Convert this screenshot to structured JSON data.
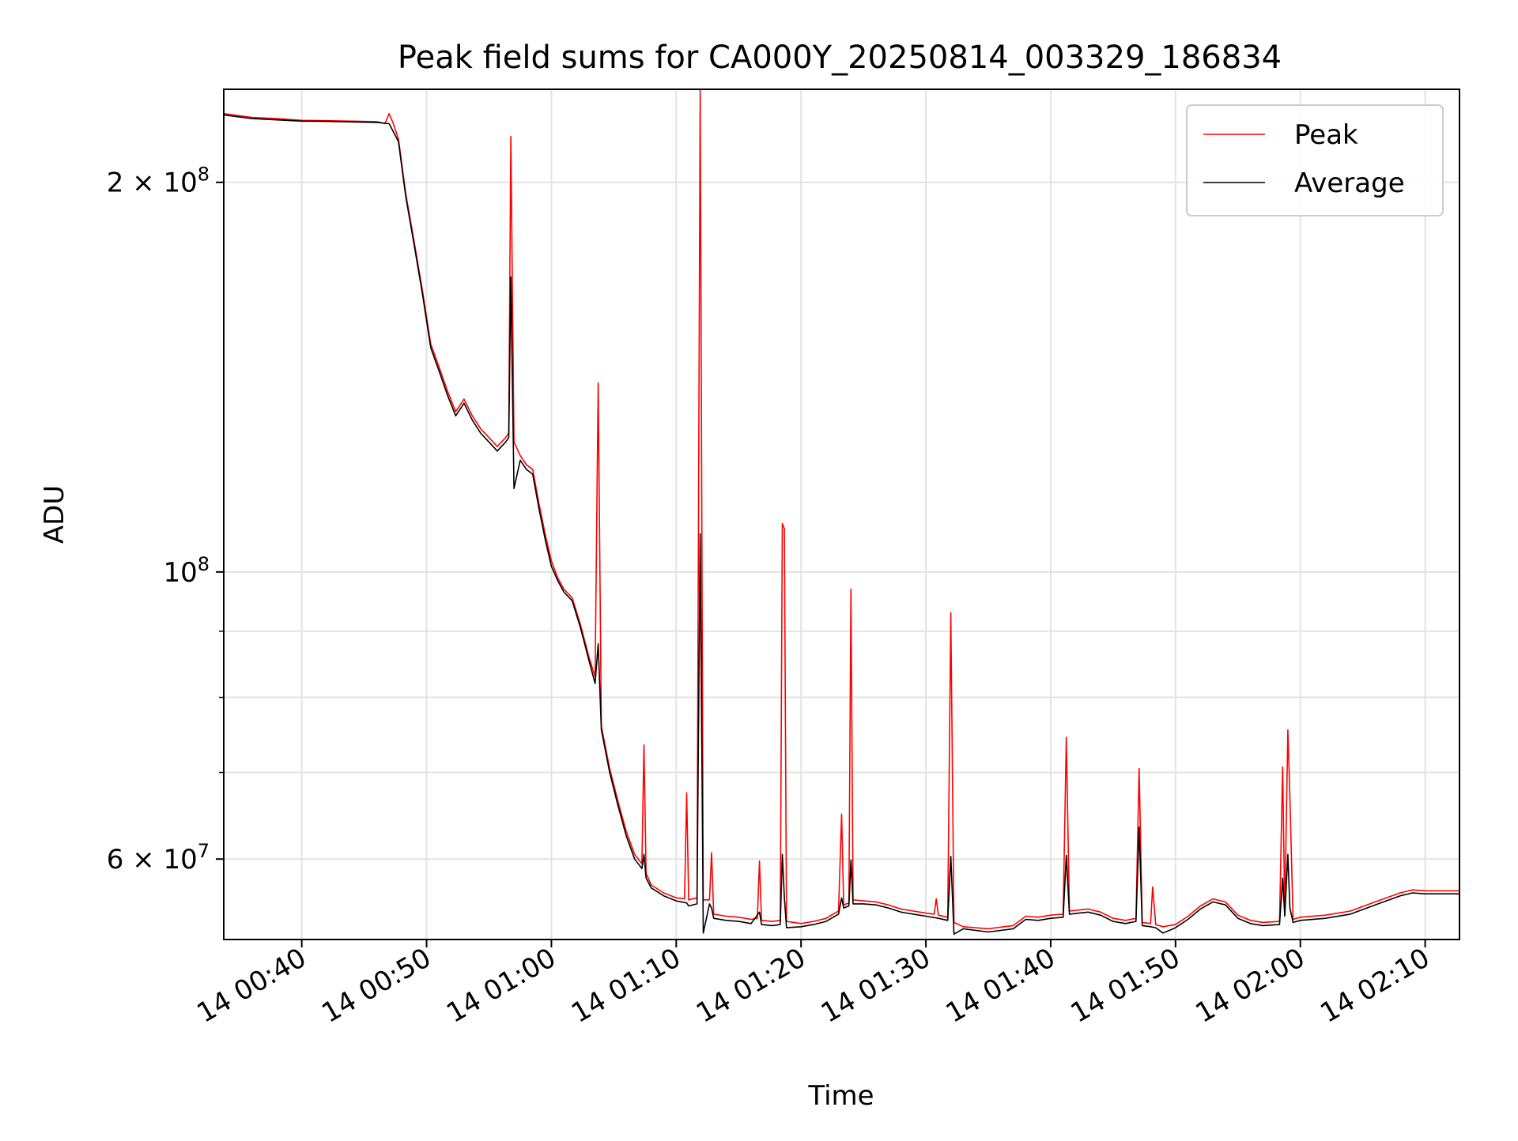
{
  "chart_data": {
    "type": "line",
    "title": "Peak field sums for CA000Y_20250814_003329_186834",
    "xlabel": "Time",
    "ylabel": "ADU",
    "yscale": "log",
    "xlim": [
      "2025-08-14 00:33:45",
      "2025-08-14 02:12:45"
    ],
    "ylim": [
      52000000,
      236000000
    ],
    "grid": true,
    "legend_position": "top-right",
    "x_ticks": [
      "14 00:40",
      "14 00:50",
      "14 01:00",
      "14 01:10",
      "14 01:20",
      "14 01:30",
      "14 01:40",
      "14 01:50",
      "14 02:00",
      "14 02:10"
    ],
    "y_ticks_major": [
      {
        "value": 200000000,
        "mantissa": "2",
        "exponent": "8"
      },
      {
        "value": 100000000,
        "mantissa": "",
        "exponent": "8"
      },
      {
        "value": 60000000,
        "mantissa": "6",
        "exponent": "7"
      }
    ],
    "y_ticks_minor": [
      70000000,
      80000000,
      90000000
    ],
    "series": [
      {
        "name": "Peak",
        "color": "#ff0000",
        "points": [
          [
            "00:33:45",
            226000000
          ],
          [
            "00:36:00",
            224500000
          ],
          [
            "00:38:00",
            224000000
          ],
          [
            "00:40:00",
            223300000
          ],
          [
            "00:42:00",
            223200000
          ],
          [
            "00:44:00",
            223000000
          ],
          [
            "00:46:00",
            222800000
          ],
          [
            "00:46:40",
            222000000
          ],
          [
            "00:47:00",
            226000000
          ],
          [
            "00:47:20",
            222000000
          ],
          [
            "00:47:45",
            216000000
          ],
          [
            "00:48:20",
            196000000
          ],
          [
            "00:49:00",
            180000000
          ],
          [
            "00:49:40",
            165000000
          ],
          [
            "00:50:20",
            150000000
          ],
          [
            "00:51:00",
            144000000
          ],
          [
            "00:51:40",
            138000000
          ],
          [
            "00:52:20",
            133000000
          ],
          [
            "00:53:00",
            136000000
          ],
          [
            "00:53:40",
            132000000
          ],
          [
            "00:54:20",
            129000000
          ],
          [
            "00:55:00",
            127000000
          ],
          [
            "00:55:40",
            125000000
          ],
          [
            "00:56:20",
            127000000
          ],
          [
            "00:56:35",
            128000000
          ],
          [
            "00:56:45",
            217000000
          ],
          [
            "00:57:00",
            126000000
          ],
          [
            "00:57:30",
            123000000
          ],
          [
            "00:58:00",
            121000000
          ],
          [
            "00:58:30",
            120000000
          ],
          [
            "00:59:00",
            113000000
          ],
          [
            "00:59:30",
            107000000
          ],
          [
            "01:00:00",
            102000000
          ],
          [
            "01:00:30",
            99000000
          ],
          [
            "01:01:00",
            97000000
          ],
          [
            "01:01:40",
            95500000
          ],
          [
            "01:02:20",
            91000000
          ],
          [
            "01:03:00",
            86000000
          ],
          [
            "01:03:30",
            83000000
          ],
          [
            "01:03:45",
            140000000
          ],
          [
            "01:04:00",
            76000000
          ],
          [
            "01:04:40",
            70500000
          ],
          [
            "01:05:20",
            66500000
          ],
          [
            "01:06:00",
            63000000
          ],
          [
            "01:06:40",
            60500000
          ],
          [
            "01:07:15",
            59500000
          ],
          [
            "01:07:25",
            73500000
          ],
          [
            "01:07:35",
            58500000
          ],
          [
            "01:08:00",
            57300000
          ],
          [
            "01:09:00",
            56500000
          ],
          [
            "01:10:00",
            56000000
          ],
          [
            "01:10:40",
            55900000
          ],
          [
            "01:10:50",
            67500000
          ],
          [
            "01:11:00",
            55800000
          ],
          [
            "01:11:40",
            56000000
          ],
          [
            "01:11:55",
            236000000
          ],
          [
            "01:12:10",
            55800000
          ],
          [
            "01:12:40",
            55800000
          ],
          [
            "01:12:50",
            60700000
          ],
          [
            "01:13:00",
            54400000
          ],
          [
            "01:14:00",
            54200000
          ],
          [
            "01:15:00",
            54100000
          ],
          [
            "01:16:00",
            53900000
          ],
          [
            "01:16:30",
            54000000
          ],
          [
            "01:16:40",
            59800000
          ],
          [
            "01:16:50",
            53800000
          ],
          [
            "01:17:40",
            53700000
          ],
          [
            "01:18:20",
            53800000
          ],
          [
            "01:18:30",
            109000000
          ],
          [
            "01:18:40",
            108000000
          ],
          [
            "01:18:50",
            53700000
          ],
          [
            "01:20:00",
            53500000
          ],
          [
            "01:21:00",
            53700000
          ],
          [
            "01:22:00",
            54000000
          ],
          [
            "01:23:00",
            54700000
          ],
          [
            "01:23:15",
            65000000
          ],
          [
            "01:23:25",
            55300000
          ],
          [
            "01:23:50",
            55500000
          ],
          [
            "01:24:00",
            97000000
          ],
          [
            "01:24:10",
            55800000
          ],
          [
            "01:25:00",
            55700000
          ],
          [
            "01:26:00",
            55600000
          ],
          [
            "01:27:00",
            55300000
          ],
          [
            "01:28:00",
            54900000
          ],
          [
            "01:29:00",
            54700000
          ],
          [
            "01:30:00",
            54500000
          ],
          [
            "01:30:40",
            54400000
          ],
          [
            "01:30:50",
            55900000
          ],
          [
            "01:31:00",
            54300000
          ],
          [
            "01:31:45",
            54100000
          ],
          [
            "01:32:00",
            93000000
          ],
          [
            "01:32:15",
            53600000
          ],
          [
            "01:33:00",
            53200000
          ],
          [
            "01:35:00",
            53000000
          ],
          [
            "01:37:00",
            53300000
          ],
          [
            "01:38:00",
            54200000
          ],
          [
            "01:39:00",
            54100000
          ],
          [
            "01:40:00",
            54300000
          ],
          [
            "01:41:00",
            54400000
          ],
          [
            "01:41:15",
            74500000
          ],
          [
            "01:41:30",
            54700000
          ],
          [
            "01:43:00",
            54900000
          ],
          [
            "01:44:00",
            54600000
          ],
          [
            "01:45:00",
            54000000
          ],
          [
            "01:46:00",
            53800000
          ],
          [
            "01:46:50",
            54000000
          ],
          [
            "01:47:05",
            70500000
          ],
          [
            "01:47:20",
            53600000
          ],
          [
            "01:48:00",
            53500000
          ],
          [
            "01:48:10",
            57100000
          ],
          [
            "01:48:25",
            53400000
          ],
          [
            "01:49:00",
            53200000
          ],
          [
            "01:50:00",
            53400000
          ],
          [
            "01:51:00",
            54200000
          ],
          [
            "01:52:00",
            55200000
          ],
          [
            "01:53:00",
            55900000
          ],
          [
            "01:54:00",
            55600000
          ],
          [
            "01:55:00",
            54300000
          ],
          [
            "01:56:00",
            53800000
          ],
          [
            "01:57:00",
            53600000
          ],
          [
            "01:58:20",
            53700000
          ],
          [
            "01:58:35",
            70700000
          ],
          [
            "01:58:45",
            54500000
          ],
          [
            "01:59:00",
            75500000
          ],
          [
            "01:59:10",
            67000000
          ],
          [
            "01:59:25",
            53900000
          ],
          [
            "02:00:00",
            54100000
          ],
          [
            "02:02:00",
            54300000
          ],
          [
            "02:04:00",
            54700000
          ],
          [
            "02:06:00",
            55600000
          ],
          [
            "02:08:00",
            56500000
          ],
          [
            "02:09:00",
            56800000
          ],
          [
            "02:10:00",
            56700000
          ],
          [
            "02:12:45",
            56700000
          ]
        ]
      },
      {
        "name": "Average",
        "color": "#000000",
        "points": [
          [
            "00:33:45",
            225500000
          ],
          [
            "00:36:00",
            224000000
          ],
          [
            "00:38:00",
            223500000
          ],
          [
            "00:40:00",
            223000000
          ],
          [
            "00:42:00",
            222900000
          ],
          [
            "00:44:00",
            222700000
          ],
          [
            "00:46:00",
            222500000
          ],
          [
            "00:47:00",
            222000000
          ],
          [
            "00:47:45",
            215000000
          ],
          [
            "00:48:20",
            195000000
          ],
          [
            "00:49:00",
            179000000
          ],
          [
            "00:49:40",
            164000000
          ],
          [
            "00:50:20",
            149000000
          ],
          [
            "00:51:00",
            143000000
          ],
          [
            "00:51:40",
            137000000
          ],
          [
            "00:52:20",
            132000000
          ],
          [
            "00:53:00",
            135000000
          ],
          [
            "00:53:40",
            131000000
          ],
          [
            "00:54:20",
            128000000
          ],
          [
            "00:55:00",
            126000000
          ],
          [
            "00:55:40",
            124000000
          ],
          [
            "00:56:20",
            126000000
          ],
          [
            "00:56:35",
            127000000
          ],
          [
            "00:56:45",
            169000000
          ],
          [
            "00:57:00",
            116000000
          ],
          [
            "00:57:30",
            122000000
          ],
          [
            "00:58:00",
            120000000
          ],
          [
            "00:58:30",
            119000000
          ],
          [
            "00:59:00",
            112000000
          ],
          [
            "00:59:30",
            106000000
          ],
          [
            "01:00:00",
            101000000
          ],
          [
            "01:00:30",
            98500000
          ],
          [
            "01:01:00",
            96500000
          ],
          [
            "01:01:40",
            95000000
          ],
          [
            "01:02:20",
            90500000
          ],
          [
            "01:03:00",
            85500000
          ],
          [
            "01:03:30",
            82000000
          ],
          [
            "01:03:45",
            88000000
          ],
          [
            "01:04:00",
            75500000
          ],
          [
            "01:04:40",
            70000000
          ],
          [
            "01:05:20",
            66000000
          ],
          [
            "01:06:00",
            62500000
          ],
          [
            "01:06:40",
            60000000
          ],
          [
            "01:07:15",
            59000000
          ],
          [
            "01:07:25",
            60500000
          ],
          [
            "01:07:35",
            58000000
          ],
          [
            "01:08:00",
            57000000
          ],
          [
            "01:09:00",
            56200000
          ],
          [
            "01:10:00",
            55700000
          ],
          [
            "01:10:50",
            55500000
          ],
          [
            "01:11:00",
            55200000
          ],
          [
            "01:11:40",
            55400000
          ],
          [
            "01:11:55",
            107000000
          ],
          [
            "01:12:10",
            52600000
          ],
          [
            "01:12:40",
            55400000
          ],
          [
            "01:12:50",
            55000000
          ],
          [
            "01:13:00",
            54000000
          ],
          [
            "01:14:00",
            53800000
          ],
          [
            "01:15:00",
            53700000
          ],
          [
            "01:16:00",
            53500000
          ],
          [
            "01:16:40",
            54600000
          ],
          [
            "01:16:50",
            53400000
          ],
          [
            "01:17:40",
            53300000
          ],
          [
            "01:18:20",
            53400000
          ],
          [
            "01:18:30",
            60500000
          ],
          [
            "01:18:40",
            56000000
          ],
          [
            "01:18:50",
            53100000
          ],
          [
            "01:20:00",
            53200000
          ],
          [
            "01:21:00",
            53400000
          ],
          [
            "01:22:00",
            53700000
          ],
          [
            "01:23:00",
            54400000
          ],
          [
            "01:23:15",
            56000000
          ],
          [
            "01:23:25",
            55000000
          ],
          [
            "01:23:50",
            55200000
          ],
          [
            "01:24:00",
            59900000
          ],
          [
            "01:24:10",
            55400000
          ],
          [
            "01:25:00",
            55400000
          ],
          [
            "01:26:00",
            55300000
          ],
          [
            "01:27:00",
            55000000
          ],
          [
            "01:28:00",
            54600000
          ],
          [
            "01:29:00",
            54400000
          ],
          [
            "01:30:00",
            54200000
          ],
          [
            "01:31:00",
            54000000
          ],
          [
            "01:31:45",
            53800000
          ],
          [
            "01:32:00",
            60300000
          ],
          [
            "01:32:15",
            52500000
          ],
          [
            "01:33:00",
            53000000
          ],
          [
            "01:35:00",
            52700000
          ],
          [
            "01:37:00",
            53000000
          ],
          [
            "01:38:00",
            53900000
          ],
          [
            "01:39:00",
            53800000
          ],
          [
            "01:40:00",
            54000000
          ],
          [
            "01:41:00",
            54100000
          ],
          [
            "01:41:15",
            60400000
          ],
          [
            "01:41:30",
            54400000
          ],
          [
            "01:43:00",
            54600000
          ],
          [
            "01:44:00",
            54300000
          ],
          [
            "01:45:00",
            53700000
          ],
          [
            "01:46:00",
            53500000
          ],
          [
            "01:46:50",
            53700000
          ],
          [
            "01:47:05",
            63500000
          ],
          [
            "01:47:20",
            53300000
          ],
          [
            "01:48:00",
            53200000
          ],
          [
            "01:48:25",
            53100000
          ],
          [
            "01:49:00",
            52600000
          ],
          [
            "01:50:00",
            53100000
          ],
          [
            "01:51:00",
            53900000
          ],
          [
            "01:52:00",
            54900000
          ],
          [
            "01:53:00",
            55600000
          ],
          [
            "01:54:00",
            55300000
          ],
          [
            "01:55:00",
            54000000
          ],
          [
            "01:56:00",
            53500000
          ],
          [
            "01:57:00",
            53300000
          ],
          [
            "01:58:20",
            53400000
          ],
          [
            "01:58:35",
            58000000
          ],
          [
            "01:58:45",
            54200000
          ],
          [
            "01:59:00",
            60500000
          ],
          [
            "01:59:10",
            55000000
          ],
          [
            "01:59:25",
            53600000
          ],
          [
            "02:00:00",
            53800000
          ],
          [
            "02:02:00",
            54000000
          ],
          [
            "02:04:00",
            54400000
          ],
          [
            "02:06:00",
            55300000
          ],
          [
            "02:08:00",
            56200000
          ],
          [
            "02:09:00",
            56500000
          ],
          [
            "02:10:00",
            56400000
          ],
          [
            "02:12:45",
            56400000
          ]
        ]
      }
    ]
  }
}
